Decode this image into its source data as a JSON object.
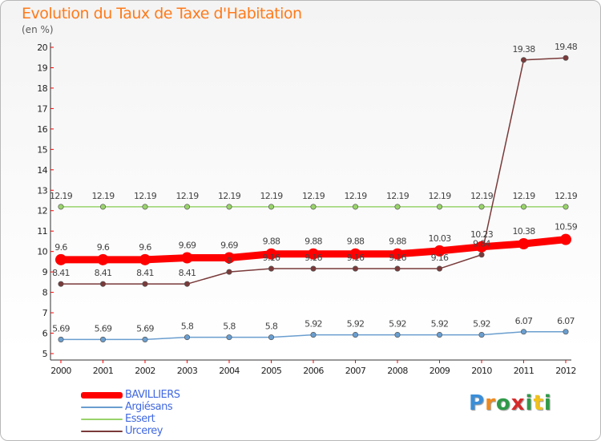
{
  "chart_data": {
    "type": "line",
    "title": "Evolution du Taux de Taxe d'Habitation",
    "subtitle": "(en %)",
    "x": [
      "2000",
      "2001",
      "2002",
      "2003",
      "2004",
      "2005",
      "2006",
      "2007",
      "2008",
      "2009",
      "2010",
      "2011",
      "2012"
    ],
    "ylim": [
      5,
      20
    ],
    "yticks": [
      "5",
      "6",
      "7",
      "8",
      "9",
      "10",
      "11",
      "12",
      "13",
      "14",
      "15",
      "16",
      "17",
      "18",
      "19",
      "20"
    ],
    "grid": false,
    "legend_position": "bottom-left",
    "series": [
      {
        "name": "BAVILLIERS",
        "color": "#ff0000",
        "values": [
          9.6,
          9.6,
          9.6,
          9.69,
          9.69,
          9.88,
          9.88,
          9.88,
          9.88,
          10.03,
          10.23,
          10.38,
          10.59
        ],
        "labels": [
          "9.6",
          "9.6",
          "9.6",
          "9.69",
          "9.69",
          "9.88",
          "9.88",
          "9.88",
          "9.88",
          "10.03",
          "10.23",
          "10.38",
          "10.59"
        ]
      },
      {
        "name": "Argiésans",
        "color": "#6a9ecf",
        "values": [
          5.69,
          5.69,
          5.69,
          5.8,
          5.8,
          5.8,
          5.92,
          5.92,
          5.92,
          5.92,
          5.92,
          6.07,
          6.07
        ],
        "labels": [
          "5.69",
          "5.69",
          "5.69",
          "5.8",
          "5.8",
          "5.8",
          "5.92",
          "5.92",
          "5.92",
          "5.92",
          "5.92",
          "6.07",
          "6.07"
        ]
      },
      {
        "name": "Essert",
        "color": "#99d36b",
        "values": [
          12.19,
          12.19,
          12.19,
          12.19,
          12.19,
          12.19,
          12.19,
          12.19,
          12.19,
          12.19,
          12.19,
          12.19,
          12.19
        ],
        "labels": [
          "12.19",
          "12.19",
          "12.19",
          "12.19",
          "12.19",
          "12.19",
          "12.19",
          "12.19",
          "12.19",
          "12.19",
          "12.19",
          "12.19",
          "12.19"
        ]
      },
      {
        "name": "Urcerey",
        "color": "#7a3a3a",
        "values": [
          8.41,
          8.41,
          8.41,
          8.41,
          9,
          9.16,
          9.16,
          9.16,
          9.16,
          9.16,
          9.84,
          19.38,
          19.48
        ],
        "labels": [
          "8.41",
          "8.41",
          "8.41",
          "8.41",
          "9",
          "9.16",
          "9.16",
          "9.16",
          "9.16",
          "9.16",
          "9.84",
          "19.38",
          "19.48"
        ]
      }
    ]
  },
  "logo": {
    "letters": [
      "P",
      "r",
      "o",
      "x",
      "i",
      "t",
      "i"
    ]
  }
}
